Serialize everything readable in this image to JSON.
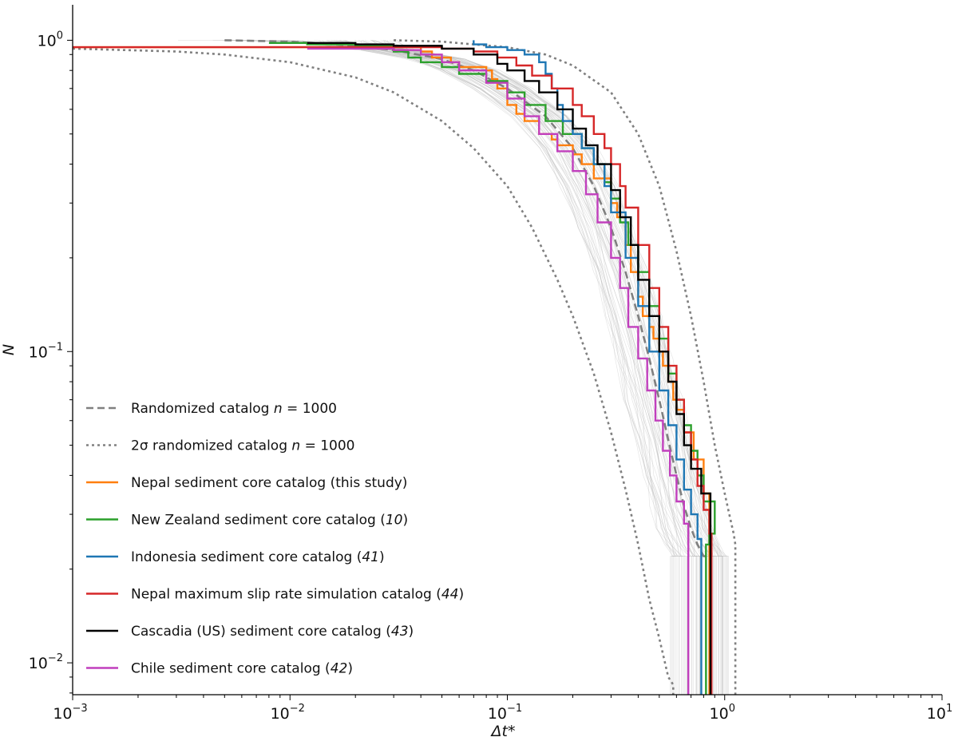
{
  "chart_data": {
    "type": "line",
    "x_scale": "log",
    "y_scale": "log",
    "xlabel": "Δt*",
    "ylabel": "N",
    "xlim": [
      0.001,
      10
    ],
    "ylim": [
      0.0079,
      1.3
    ],
    "x_ticks": [
      {
        "value": 0.001,
        "base": "10",
        "exp": "−3"
      },
      {
        "value": 0.01,
        "base": "10",
        "exp": "−2"
      },
      {
        "value": 0.1,
        "base": "10",
        "exp": "−1"
      },
      {
        "value": 1,
        "base": "10",
        "exp": "0"
      },
      {
        "value": 10,
        "base": "10",
        "exp": "1"
      }
    ],
    "y_ticks": [
      {
        "value": 0.01,
        "base": "10",
        "exp": "−2"
      },
      {
        "value": 0.1,
        "base": "10",
        "exp": "−1"
      },
      {
        "value": 1,
        "base": "10",
        "exp": "0"
      }
    ],
    "background_simulations": {
      "count": 60,
      "description": "individual randomized catalogs",
      "color": "#bdbdbd"
    },
    "series": [
      {
        "name": "Randomized catalog",
        "label_suffix": " = 1000",
        "n_symbol": "n",
        "style": "dashed",
        "color": "#808080",
        "x": [
          0.005,
          0.01,
          0.02,
          0.03,
          0.05,
          0.07,
          0.1,
          0.15,
          0.2,
          0.25,
          0.3,
          0.35,
          0.4,
          0.45,
          0.5,
          0.55,
          0.6,
          0.65,
          0.7,
          0.75,
          0.8,
          0.82
        ],
        "y": [
          1.0,
          0.99,
          0.96,
          0.93,
          0.87,
          0.8,
          0.7,
          0.57,
          0.45,
          0.34,
          0.25,
          0.18,
          0.13,
          0.095,
          0.07,
          0.052,
          0.04,
          0.032,
          0.027,
          0.024,
          0.022,
          0.022
        ]
      },
      {
        "name": "2σ randomized catalog",
        "label_suffix": " = 1000",
        "n_symbol": "n",
        "style": "dotted",
        "color": "#808080",
        "x": [
          0.001,
          0.003,
          0.005,
          0.01,
          0.02,
          0.03,
          0.05,
          0.07,
          0.1,
          0.13,
          0.17,
          0.2,
          0.25,
          0.3,
          0.35,
          0.4,
          0.45,
          0.5,
          0.55,
          0.58,
          0.58
        ],
        "y": [
          0.94,
          0.92,
          0.9,
          0.85,
          0.76,
          0.68,
          0.55,
          0.45,
          0.34,
          0.25,
          0.17,
          0.13,
          0.085,
          0.055,
          0.036,
          0.024,
          0.016,
          0.012,
          0.009,
          0.0085,
          0.0079
        ]
      },
      {
        "name": "2σ randomized catalog (upper)",
        "style": "dotted",
        "color": "#808080",
        "legend": false,
        "x": [
          0.03,
          0.05,
          0.07,
          0.1,
          0.15,
          0.2,
          0.3,
          0.4,
          0.5,
          0.6,
          0.7,
          0.8,
          0.9,
          1.0,
          1.05,
          1.1,
          1.12,
          1.12
        ],
        "y": [
          1.0,
          0.99,
          0.97,
          0.95,
          0.9,
          0.83,
          0.68,
          0.5,
          0.34,
          0.21,
          0.13,
          0.08,
          0.05,
          0.035,
          0.03,
          0.026,
          0.024,
          0.0079
        ]
      },
      {
        "name": "Nepal sediment core catalog",
        "label_suffix": " (this study)",
        "color": "#ff7f0e",
        "x": [
          0.001,
          0.035,
          0.04,
          0.045,
          0.055,
          0.06,
          0.07,
          0.08,
          0.085,
          0.09,
          0.1,
          0.11,
          0.12,
          0.14,
          0.16,
          0.17,
          0.2,
          0.22,
          0.25,
          0.3,
          0.32,
          0.35,
          0.37,
          0.4,
          0.42,
          0.45,
          0.47,
          0.5,
          0.52,
          0.55,
          0.58,
          0.6,
          0.65,
          0.72,
          0.8,
          0.85,
          0.85
        ],
        "y": [
          0.95,
          0.95,
          0.92,
          0.88,
          0.85,
          0.82,
          0.82,
          0.8,
          0.75,
          0.7,
          0.62,
          0.58,
          0.55,
          0.5,
          0.48,
          0.46,
          0.43,
          0.4,
          0.36,
          0.3,
          0.27,
          0.22,
          0.18,
          0.15,
          0.13,
          0.12,
          0.11,
          0.1,
          0.09,
          0.08,
          0.07,
          0.065,
          0.055,
          0.045,
          0.035,
          0.028,
          0.0079
        ]
      },
      {
        "name": "New Zealand sediment core catalog",
        "label_suffix": " (",
        "cite": "10",
        "color": "#2ca02c",
        "x": [
          0.008,
          0.012,
          0.02,
          0.03,
          0.035,
          0.04,
          0.05,
          0.06,
          0.08,
          0.1,
          0.12,
          0.15,
          0.18,
          0.22,
          0.25,
          0.28,
          0.3,
          0.33,
          0.36,
          0.4,
          0.45,
          0.5,
          0.55,
          0.6,
          0.65,
          0.7,
          0.75,
          0.8,
          0.9,
          0.85,
          0.82,
          0.82
        ],
        "y": [
          0.98,
          0.97,
          0.96,
          0.92,
          0.88,
          0.85,
          0.82,
          0.78,
          0.74,
          0.68,
          0.62,
          0.55,
          0.5,
          0.45,
          0.4,
          0.35,
          0.31,
          0.26,
          0.22,
          0.18,
          0.14,
          0.11,
          0.085,
          0.07,
          0.058,
          0.048,
          0.04,
          0.033,
          0.026,
          0.024,
          0.022,
          0.0079
        ]
      },
      {
        "name": "Indonesia sediment core catalog",
        "label_suffix": " (",
        "cite": "41",
        "color": "#1f77b4",
        "x": [
          0.07,
          0.07,
          0.08,
          0.1,
          0.12,
          0.14,
          0.15,
          0.16,
          0.17,
          0.18,
          0.2,
          0.22,
          0.25,
          0.28,
          0.3,
          0.35,
          0.4,
          0.45,
          0.5,
          0.55,
          0.6,
          0.65,
          0.7,
          0.75,
          0.78,
          0.78
        ],
        "y": [
          1.0,
          0.97,
          0.95,
          0.93,
          0.9,
          0.85,
          0.78,
          0.7,
          0.62,
          0.55,
          0.5,
          0.45,
          0.4,
          0.34,
          0.28,
          0.2,
          0.14,
          0.1,
          0.075,
          0.058,
          0.045,
          0.036,
          0.03,
          0.025,
          0.023,
          0.0079
        ]
      },
      {
        "name": "Nepal maximum slip rate simulation catalog",
        "label_suffix": " (",
        "cite": "44",
        "color": "#d62728",
        "x": [
          0.001,
          0.03,
          0.05,
          0.07,
          0.09,
          0.11,
          0.13,
          0.16,
          0.2,
          0.22,
          0.25,
          0.28,
          0.3,
          0.33,
          0.35,
          0.4,
          0.45,
          0.5,
          0.55,
          0.6,
          0.65,
          0.7,
          0.75,
          0.8,
          0.85,
          0.87,
          0.87
        ],
        "y": [
          0.95,
          0.95,
          0.94,
          0.92,
          0.88,
          0.83,
          0.77,
          0.7,
          0.62,
          0.57,
          0.5,
          0.45,
          0.4,
          0.34,
          0.29,
          0.22,
          0.16,
          0.12,
          0.09,
          0.07,
          0.055,
          0.045,
          0.037,
          0.031,
          0.026,
          0.022,
          0.0079
        ]
      },
      {
        "name": "Cascadia (US) sediment core catalog",
        "label_suffix": " (",
        "cite": "43",
        "color": "#000000",
        "x": [
          0.012,
          0.02,
          0.03,
          0.05,
          0.07,
          0.09,
          0.1,
          0.12,
          0.14,
          0.17,
          0.2,
          0.23,
          0.26,
          0.3,
          0.33,
          0.37,
          0.4,
          0.45,
          0.5,
          0.55,
          0.6,
          0.65,
          0.7,
          0.78,
          0.86,
          0.86
        ],
        "y": [
          0.98,
          0.97,
          0.96,
          0.94,
          0.9,
          0.84,
          0.8,
          0.74,
          0.68,
          0.6,
          0.52,
          0.46,
          0.4,
          0.33,
          0.27,
          0.22,
          0.17,
          0.13,
          0.1,
          0.08,
          0.063,
          0.05,
          0.042,
          0.035,
          0.03,
          0.0079
        ]
      },
      {
        "name": "Chile sediment core catalog",
        "label_suffix": " (",
        "cite": "42",
        "color": "#c13fbd",
        "x": [
          0.012,
          0.02,
          0.03,
          0.04,
          0.05,
          0.06,
          0.08,
          0.1,
          0.12,
          0.14,
          0.17,
          0.2,
          0.23,
          0.26,
          0.3,
          0.33,
          0.36,
          0.4,
          0.44,
          0.48,
          0.52,
          0.56,
          0.6,
          0.65,
          0.68,
          0.68
        ],
        "y": [
          0.94,
          0.94,
          0.93,
          0.9,
          0.85,
          0.8,
          0.73,
          0.65,
          0.57,
          0.5,
          0.44,
          0.38,
          0.32,
          0.26,
          0.2,
          0.16,
          0.12,
          0.095,
          0.075,
          0.06,
          0.048,
          0.04,
          0.033,
          0.028,
          0.025,
          0.0079
        ]
      }
    ]
  }
}
